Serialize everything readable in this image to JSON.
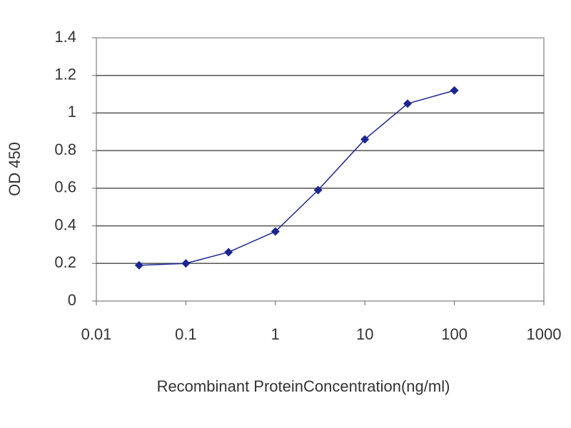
{
  "chart_data": {
    "type": "line",
    "x_label": "Recombinant ProteinConcentration(ng/ml)",
    "y_label": "OD 450",
    "x": [
      0.03,
      0.1,
      0.3,
      1,
      3,
      10,
      30,
      100
    ],
    "series": [
      {
        "color": "#1c2590",
        "values": [
          0.19,
          0.2,
          0.26,
          0.37,
          0.59,
          0.86,
          1.05,
          1.12
        ]
      }
    ],
    "xlim": [
      0.01,
      1000
    ],
    "xticks": [
      0.01,
      0.1,
      1,
      10,
      100,
      1000
    ],
    "x_log": true,
    "ylim": [
      0,
      1.4
    ],
    "yticks": [
      0,
      0.2,
      0.4,
      0.6,
      0.8,
      1,
      1.2,
      1.4
    ],
    "grid": true
  }
}
